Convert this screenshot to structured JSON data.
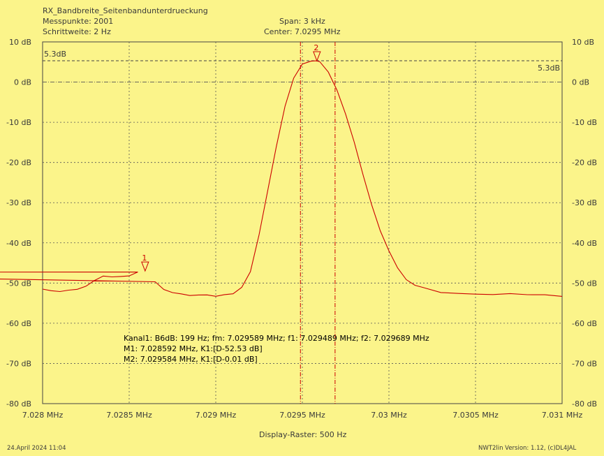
{
  "header": {
    "title": "RX_Bandbreite_Seitenbandunterdrueckung",
    "points": "Messpunkte: 2001",
    "step": "Schrittweite:   2 Hz",
    "span": "Span: 3 kHz",
    "center": "Center: 7.0295 MHz"
  },
  "footer": {
    "date": "24.April 2024 11:04",
    "raster": "Display-Raster: 500 Hz",
    "version": "NWT2lin Version: 1.12, (c)DL4JAL"
  },
  "info": {
    "line1": "Kanal1: B6dB: 199 Hz; fm: 7.029589 MHz; f1: 7.029489 MHz; f2: 7.029689 MHz",
    "line2": "M1: 7.028592 MHz, K1:[D-52.53 dB]",
    "line3": "M2: 7.029584 MHz, K1:[D-0.01 dB]"
  },
  "chart_data": {
    "type": "line",
    "xlim": [
      7.028,
      7.031
    ],
    "ylim": [
      -80,
      10
    ],
    "x_ticks": [
      7.028,
      7.0285,
      7.029,
      7.0295,
      7.03,
      7.0305,
      7.031
    ],
    "x_tick_labels": [
      "7.028 MHz",
      "7.0285 MHz",
      "7.029 MHz",
      "7.0295 MHz",
      "7.03 MHz",
      "7.0305 MHz",
      "7.031 MHz"
    ],
    "y_ticks": [
      10,
      0,
      -10,
      -20,
      -30,
      -40,
      -50,
      -60,
      -70,
      -80
    ],
    "y_tick_labels": [
      "10 dB",
      "0 dB",
      "-10 dB",
      "-20 dB",
      "-30 dB",
      "-40 dB",
      "-50 dB",
      "-60 dB",
      "-70 dB",
      "-80 dB"
    ],
    "grid": true,
    "reference_level": 5.3,
    "reference_label": "5.3dB",
    "bandwidth_lines": [
      7.029489,
      7.029689
    ],
    "markers": [
      {
        "label": "1",
        "x": 7.028592,
        "y": -47.0
      },
      {
        "label": "2",
        "x": 7.029584,
        "y": 5.3
      }
    ],
    "colors": {
      "background": "#fbf48a",
      "trace": "#cc0000",
      "grid": "#444444",
      "text": "#3a3a3a"
    },
    "series": [
      {
        "x": [
          7.028,
          7.02805,
          7.0281,
          7.02815,
          7.0282,
          7.02825,
          7.0283,
          7.02835,
          7.0284,
          7.02845,
          7.0285,
          7.02855,
          7.0256,
          7.02865,
          7.0287,
          7.02875,
          7.0288,
          7.02885,
          7.0289,
          7.02895,
          7.029,
          7.02905,
          7.0291,
          7.02915,
          7.0292,
          7.02925,
          7.0293,
          7.02935,
          7.0294,
          7.02945,
          7.0295,
          7.02955,
          7.02958,
          7.0296,
          7.02965,
          7.0297,
          7.02975,
          7.0298,
          7.02985,
          7.0299,
          7.02995,
          7.03,
          7.03005,
          7.0301,
          7.03015,
          7.0302,
          7.0303,
          7.0304,
          7.0305,
          7.0306,
          7.0307,
          7.0308,
          7.0309,
          7.031
        ],
        "y": [
          -51.5,
          -52.0,
          -52.3,
          -52.0,
          -51.8,
          -51.0,
          -49.5,
          -48.3,
          -48.4,
          -48.2,
          -48.0,
          -47.0,
          -47.1,
          -49.5,
          -51.5,
          -52.4,
          -52.8,
          -53.3,
          -53.2,
          -53.2,
          -53.5,
          -53.0,
          -52.7,
          -51.0,
          -47.0,
          -38.0,
          -27.0,
          -16.0,
          -6.0,
          1.0,
          4.5,
          5.2,
          5.3,
          5.1,
          2.5,
          -2.0,
          -8.0,
          -15.0,
          -23.0,
          -30.5,
          -37.0,
          -42.0,
          -46.0,
          -49.0,
          -50.5,
          -51.2,
          -52.5,
          -52.8,
          -53.0,
          -53.1,
          -52.8,
          -53.0,
          -52.9,
          -53.2
        ]
      }
    ]
  }
}
